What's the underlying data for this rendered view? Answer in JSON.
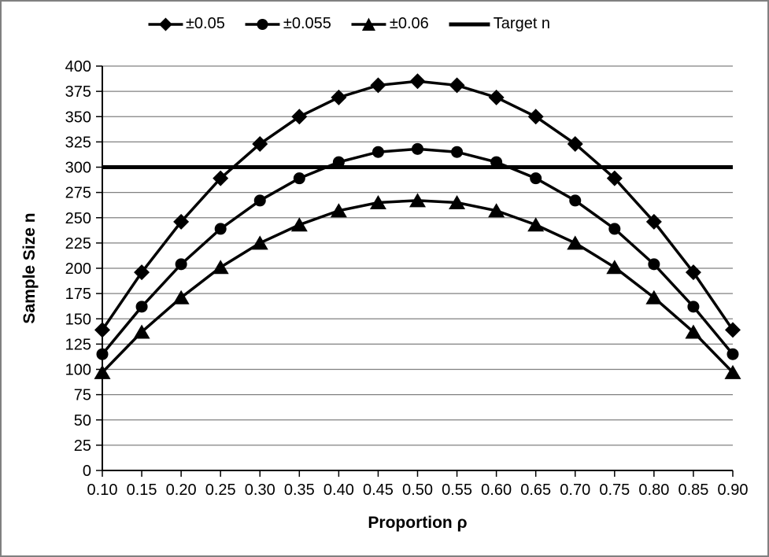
{
  "chart_data": {
    "type": "line",
    "title": "",
    "xlabel": "Proportion ρ",
    "ylabel": "Sample Size n",
    "categories": [
      "0.10",
      "0.15",
      "0.20",
      "0.25",
      "0.30",
      "0.35",
      "0.40",
      "0.45",
      "0.50",
      "0.55",
      "0.60",
      "0.65",
      "0.70",
      "0.75",
      "0.80",
      "0.85",
      "0.90"
    ],
    "ylim": [
      0,
      400
    ],
    "y_ticks": [
      0,
      25,
      50,
      75,
      100,
      125,
      150,
      175,
      200,
      225,
      250,
      275,
      300,
      325,
      350,
      375,
      400
    ],
    "grid": "horizontal-only",
    "legend_position": "top-center",
    "series": [
      {
        "name": "±0.05",
        "marker": "diamond",
        "color": "#000000",
        "values": [
          139,
          196,
          246,
          289,
          323,
          350,
          369,
          381,
          385,
          381,
          369,
          350,
          323,
          289,
          246,
          196,
          139
        ]
      },
      {
        "name": "±0.055",
        "marker": "circle",
        "color": "#000000",
        "values": [
          115,
          162,
          204,
          239,
          267,
          289,
          305,
          315,
          318,
          315,
          305,
          289,
          267,
          239,
          204,
          162,
          115
        ]
      },
      {
        "name": "±0.06",
        "marker": "triangle",
        "color": "#000000",
        "values": [
          97,
          137,
          171,
          201,
          225,
          243,
          257,
          265,
          267,
          265,
          257,
          243,
          225,
          201,
          171,
          137,
          97
        ]
      }
    ],
    "reference_line": {
      "name": "Target n",
      "value": 300,
      "color": "#000000"
    },
    "colors": {
      "series_line": "#000000",
      "gridline": "#808080",
      "axis": "#000000",
      "text": "#000000",
      "background": "#ffffff",
      "frame_border": "#808080"
    }
  }
}
